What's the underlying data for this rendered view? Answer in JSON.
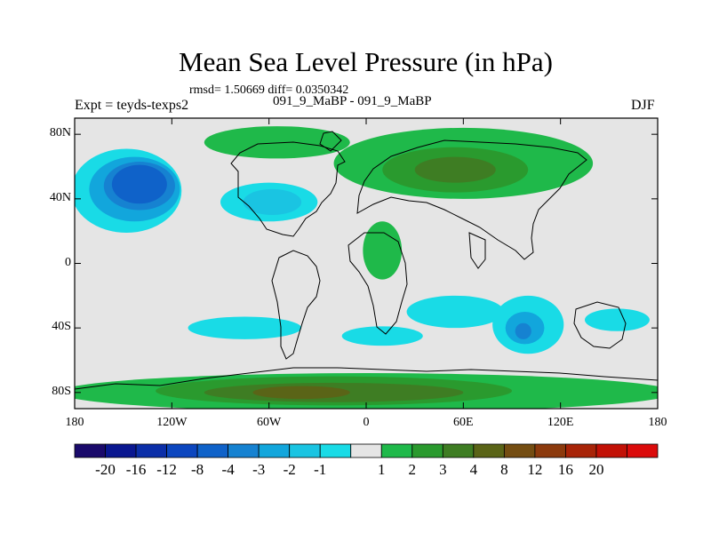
{
  "title": "Mean Sea Level Pressure (in hPa)",
  "stats": "rmsd= 1.50669 diff= 0.0350342",
  "subtitle_left": "Expt = teyds-texps2",
  "subtitle_center": "091_9_MaBP - 091_9_MaBP",
  "subtitle_right": "DJF",
  "map": {
    "projection": "cylindrical equidistant",
    "lon_range": [
      -180,
      180
    ],
    "lat_range": [
      -90,
      90
    ],
    "y_ticks": [
      {
        "label": "80N",
        "lat": 80
      },
      {
        "label": "40N",
        "lat": 40
      },
      {
        "label": "0",
        "lat": 0
      },
      {
        "label": "40S",
        "lat": -40
      },
      {
        "label": "80S",
        "lat": -80
      }
    ],
    "x_ticks": [
      {
        "label": "180",
        "lon": -180
      },
      {
        "label": "120W",
        "lon": -120
      },
      {
        "label": "60W",
        "lon": -60
      },
      {
        "label": "0",
        "lon": 0
      },
      {
        "label": "60E",
        "lon": 60
      },
      {
        "label": "120E",
        "lon": 120
      },
      {
        "label": "180",
        "lon": 180
      }
    ]
  },
  "colorbar": {
    "colors": [
      "#1a0a6b",
      "#0a1790",
      "#0b2ea8",
      "#0c46bf",
      "#0f62c9",
      "#1682d1",
      "#12a6dc",
      "#1ac4e2",
      "#19dbe6",
      "#e5e5e5",
      "#1fb94a",
      "#2a9a2e",
      "#3e7d23",
      "#5a6417",
      "#744d12",
      "#8c3a0d",
      "#a82408",
      "#c21106",
      "#db0b0b"
    ],
    "labels": [
      "-20",
      "-16",
      "-12",
      "-8",
      "-4",
      "-3",
      "-2",
      "-1",
      "1",
      "2",
      "3",
      "4",
      "8",
      "12",
      "16",
      "20"
    ],
    "label_boxes": [
      1,
      2,
      3,
      4,
      5,
      6,
      7,
      8,
      10,
      11,
      12,
      13,
      14,
      15,
      16,
      17
    ]
  },
  "regions": [
    {
      "name": "north-pacific-low-outer",
      "color": "#19dbe6",
      "lon": -148,
      "lat": 45,
      "rlon": 34,
      "rlat": 26
    },
    {
      "name": "north-pacific-low-2",
      "color": "#12a6dc",
      "lon": -143,
      "lat": 46,
      "rlon": 28,
      "rlat": 20
    },
    {
      "name": "north-pacific-low-3",
      "color": "#1682d1",
      "lon": -140,
      "lat": 48,
      "rlon": 22,
      "rlat": 15
    },
    {
      "name": "north-pacific-low-core",
      "color": "#0f62c9",
      "lon": -140,
      "lat": 49,
      "rlon": 17,
      "rlat": 12
    },
    {
      "name": "north-atlantic-low-outer",
      "color": "#19dbe6",
      "lon": -60,
      "lat": 38,
      "rlon": 30,
      "rlat": 12
    },
    {
      "name": "north-atlantic-low-core",
      "color": "#1ac4e2",
      "lon": -58,
      "lat": 38,
      "rlon": 18,
      "rlat": 8
    },
    {
      "name": "south-pacific-low",
      "color": "#19dbe6",
      "lon": -75,
      "lat": -40,
      "rlon": 35,
      "rlat": 7
    },
    {
      "name": "south-atlantic-low",
      "color": "#19dbe6",
      "lon": 10,
      "lat": -45,
      "rlon": 25,
      "rlat": 6
    },
    {
      "name": "south-indian-low-west",
      "color": "#19dbe6",
      "lon": 55,
      "lat": -30,
      "rlon": 30,
      "rlat": 10
    },
    {
      "name": "south-indian-low-east",
      "color": "#19dbe6",
      "lon": 100,
      "lat": -38,
      "rlon": 22,
      "rlat": 18
    },
    {
      "name": "south-indian-low-core",
      "color": "#12a6dc",
      "lon": 98,
      "lat": -40,
      "rlon": 12,
      "rlat": 10
    },
    {
      "name": "south-indian-low-center",
      "color": "#1682d1",
      "lon": 97,
      "lat": -42,
      "rlon": 5,
      "rlat": 5
    },
    {
      "name": "tasman-low",
      "color": "#19dbe6",
      "lon": 155,
      "lat": -35,
      "rlon": 20,
      "rlat": 7
    },
    {
      "name": "north-canada-high",
      "color": "#1fb94a",
      "lon": -55,
      "lat": 75,
      "rlon": 45,
      "rlat": 10
    },
    {
      "name": "eurasia-high-outer",
      "color": "#1fb94a",
      "lon": 60,
      "lat": 62,
      "rlon": 80,
      "rlat": 22
    },
    {
      "name": "eurasia-high-mid",
      "color": "#2a9a2e",
      "lon": 55,
      "lat": 58,
      "rlon": 45,
      "rlat": 14
    },
    {
      "name": "eurasia-high-core",
      "color": "#3e7d23",
      "lon": 55,
      "lat": 58,
      "rlon": 25,
      "rlat": 8
    },
    {
      "name": "africa-high",
      "color": "#1fb94a",
      "lon": 10,
      "lat": 8,
      "rlon": 12,
      "rlat": 18
    },
    {
      "name": "antarctic-high-outer",
      "color": "#1fb94a",
      "lon": 0,
      "lat": -80,
      "rlon": 190,
      "rlat": 12
    },
    {
      "name": "antarctic-high-mid",
      "color": "#2a9a2e",
      "lon": -20,
      "lat": -79,
      "rlon": 110,
      "rlat": 9
    },
    {
      "name": "antarctic-high-core",
      "color": "#3e7d23",
      "lon": -20,
      "lat": -80,
      "rlon": 80,
      "rlat": 6
    },
    {
      "name": "antarctic-high-peak",
      "color": "#5a6417",
      "lon": -40,
      "lat": -80,
      "rlon": 30,
      "rlat": 4
    }
  ]
}
